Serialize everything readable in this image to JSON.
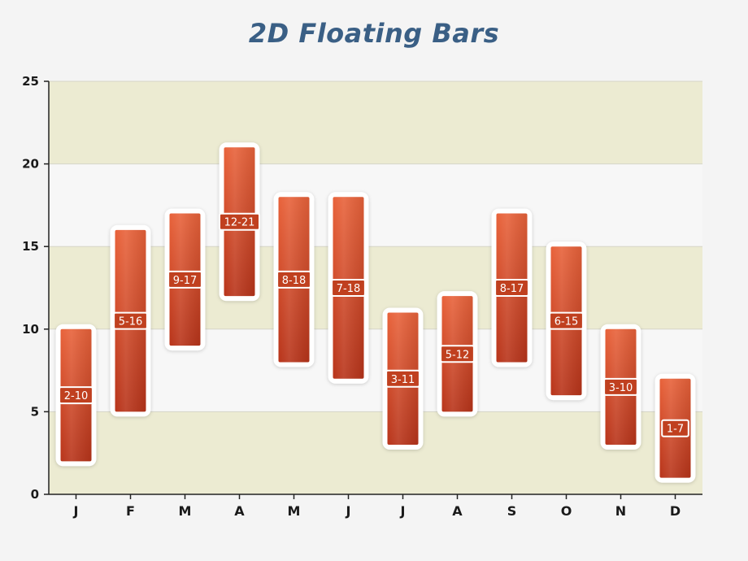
{
  "chart_data": {
    "type": "bar",
    "subtype": "floating",
    "title": "2D Floating Bars",
    "xlabel": "",
    "ylabel": "",
    "ylim": [
      0,
      25
    ],
    "yticks": [
      "0",
      "5",
      "10",
      "15",
      "20",
      "25"
    ],
    "categories": [
      "J",
      "F",
      "M",
      "A",
      "M",
      "J",
      "J",
      "A",
      "S",
      "O",
      "N",
      "D"
    ],
    "ranges": [
      [
        2,
        10
      ],
      [
        5,
        16
      ],
      [
        9,
        17
      ],
      [
        12,
        21
      ],
      [
        8,
        18
      ],
      [
        7,
        18
      ],
      [
        3,
        11
      ],
      [
        5,
        12
      ],
      [
        8,
        17
      ],
      [
        6,
        15
      ],
      [
        3,
        10
      ],
      [
        1,
        7
      ]
    ],
    "labels": [
      "2-10",
      "5-16",
      "9-17",
      "12-21",
      "8-18",
      "7-18",
      "3-11",
      "5-12",
      "8-17",
      "6-15",
      "3-10",
      "1-7"
    ],
    "grid": true,
    "legend": "none",
    "colors": {
      "bar_top": "#e8623a",
      "bar_bottom": "#b8341a",
      "band": "#ecebd2",
      "band_alt": "#f7f7f7",
      "title": "#3a5f85"
    }
  }
}
